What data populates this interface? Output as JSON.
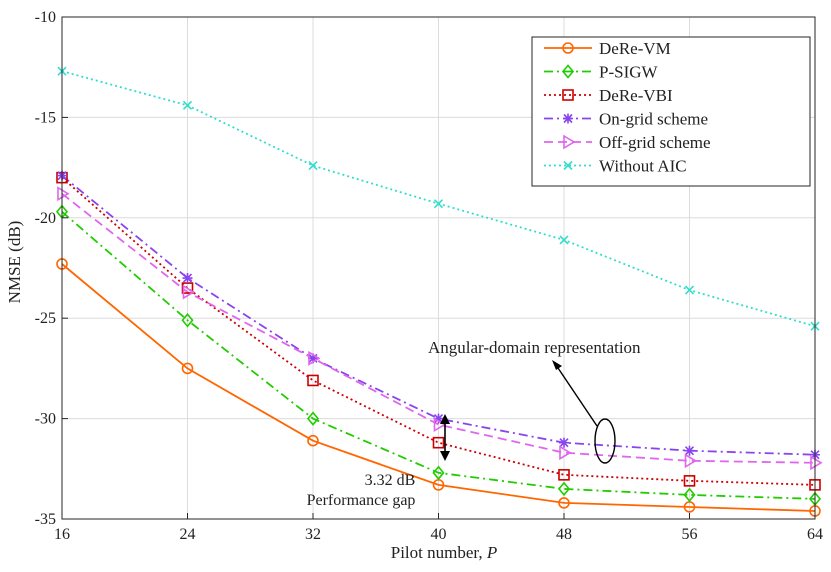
{
  "chart_data": {
    "type": "line",
    "title": "",
    "xlabel_prefix": "Pilot number, ",
    "xlabel_var": "P",
    "ylabel": "NMSE (dB)",
    "xlim": [
      16,
      64
    ],
    "ylim": [
      -35,
      -10
    ],
    "x": [
      16,
      24,
      32,
      40,
      48,
      56,
      64
    ],
    "xticks": [
      "16",
      "24",
      "32",
      "40",
      "48",
      "56",
      "64"
    ],
    "yticks": [
      "-10",
      "-15",
      "-20",
      "-25",
      "-30",
      "-35"
    ],
    "ytick_values": [
      -10,
      -15,
      -20,
      -25,
      -30,
      -35
    ],
    "grid": true,
    "legend_position": "top-right",
    "series": [
      {
        "name": "DeRe-VM",
        "color": "#ff6600",
        "dash": "solid",
        "marker": "circle",
        "values": [
          -22.3,
          -27.5,
          -31.1,
          -33.3,
          -34.2,
          -34.4,
          -34.6
        ]
      },
      {
        "name": "P-SIGW",
        "color": "#22cc00",
        "dash": "dashdot",
        "marker": "diamond",
        "values": [
          -19.7,
          -25.1,
          -30.0,
          -32.7,
          -33.5,
          -33.8,
          -34.0
        ]
      },
      {
        "name": "DeRe-VBI",
        "color": "#cc0000",
        "dash": "dotted",
        "marker": "square",
        "values": [
          -18.0,
          -23.5,
          -28.1,
          -31.2,
          -32.8,
          -33.1,
          -33.3
        ]
      },
      {
        "name": "On-grid scheme",
        "color": "#8844ee",
        "dash": "dashdot",
        "marker": "star",
        "values": [
          -17.9,
          -23.0,
          -27.0,
          -30.0,
          -31.2,
          -31.6,
          -31.8
        ]
      },
      {
        "name": "Off-grid scheme",
        "color": "#e066ee",
        "dash": "dashed",
        "marker": "triangle-right",
        "values": [
          -18.8,
          -23.7,
          -27.0,
          -30.3,
          -31.7,
          -32.1,
          -32.2
        ]
      },
      {
        "name": "Without AIC",
        "color": "#33ddcc",
        "dash": "dotted",
        "marker": "x",
        "values": [
          -12.7,
          -14.4,
          -17.4,
          -19.3,
          -21.1,
          -23.6,
          -25.4
        ]
      }
    ],
    "annotations": {
      "angular": "Angular-domain representation",
      "gap_value": "3.32 dB",
      "gap_label": "Performance gap"
    }
  }
}
